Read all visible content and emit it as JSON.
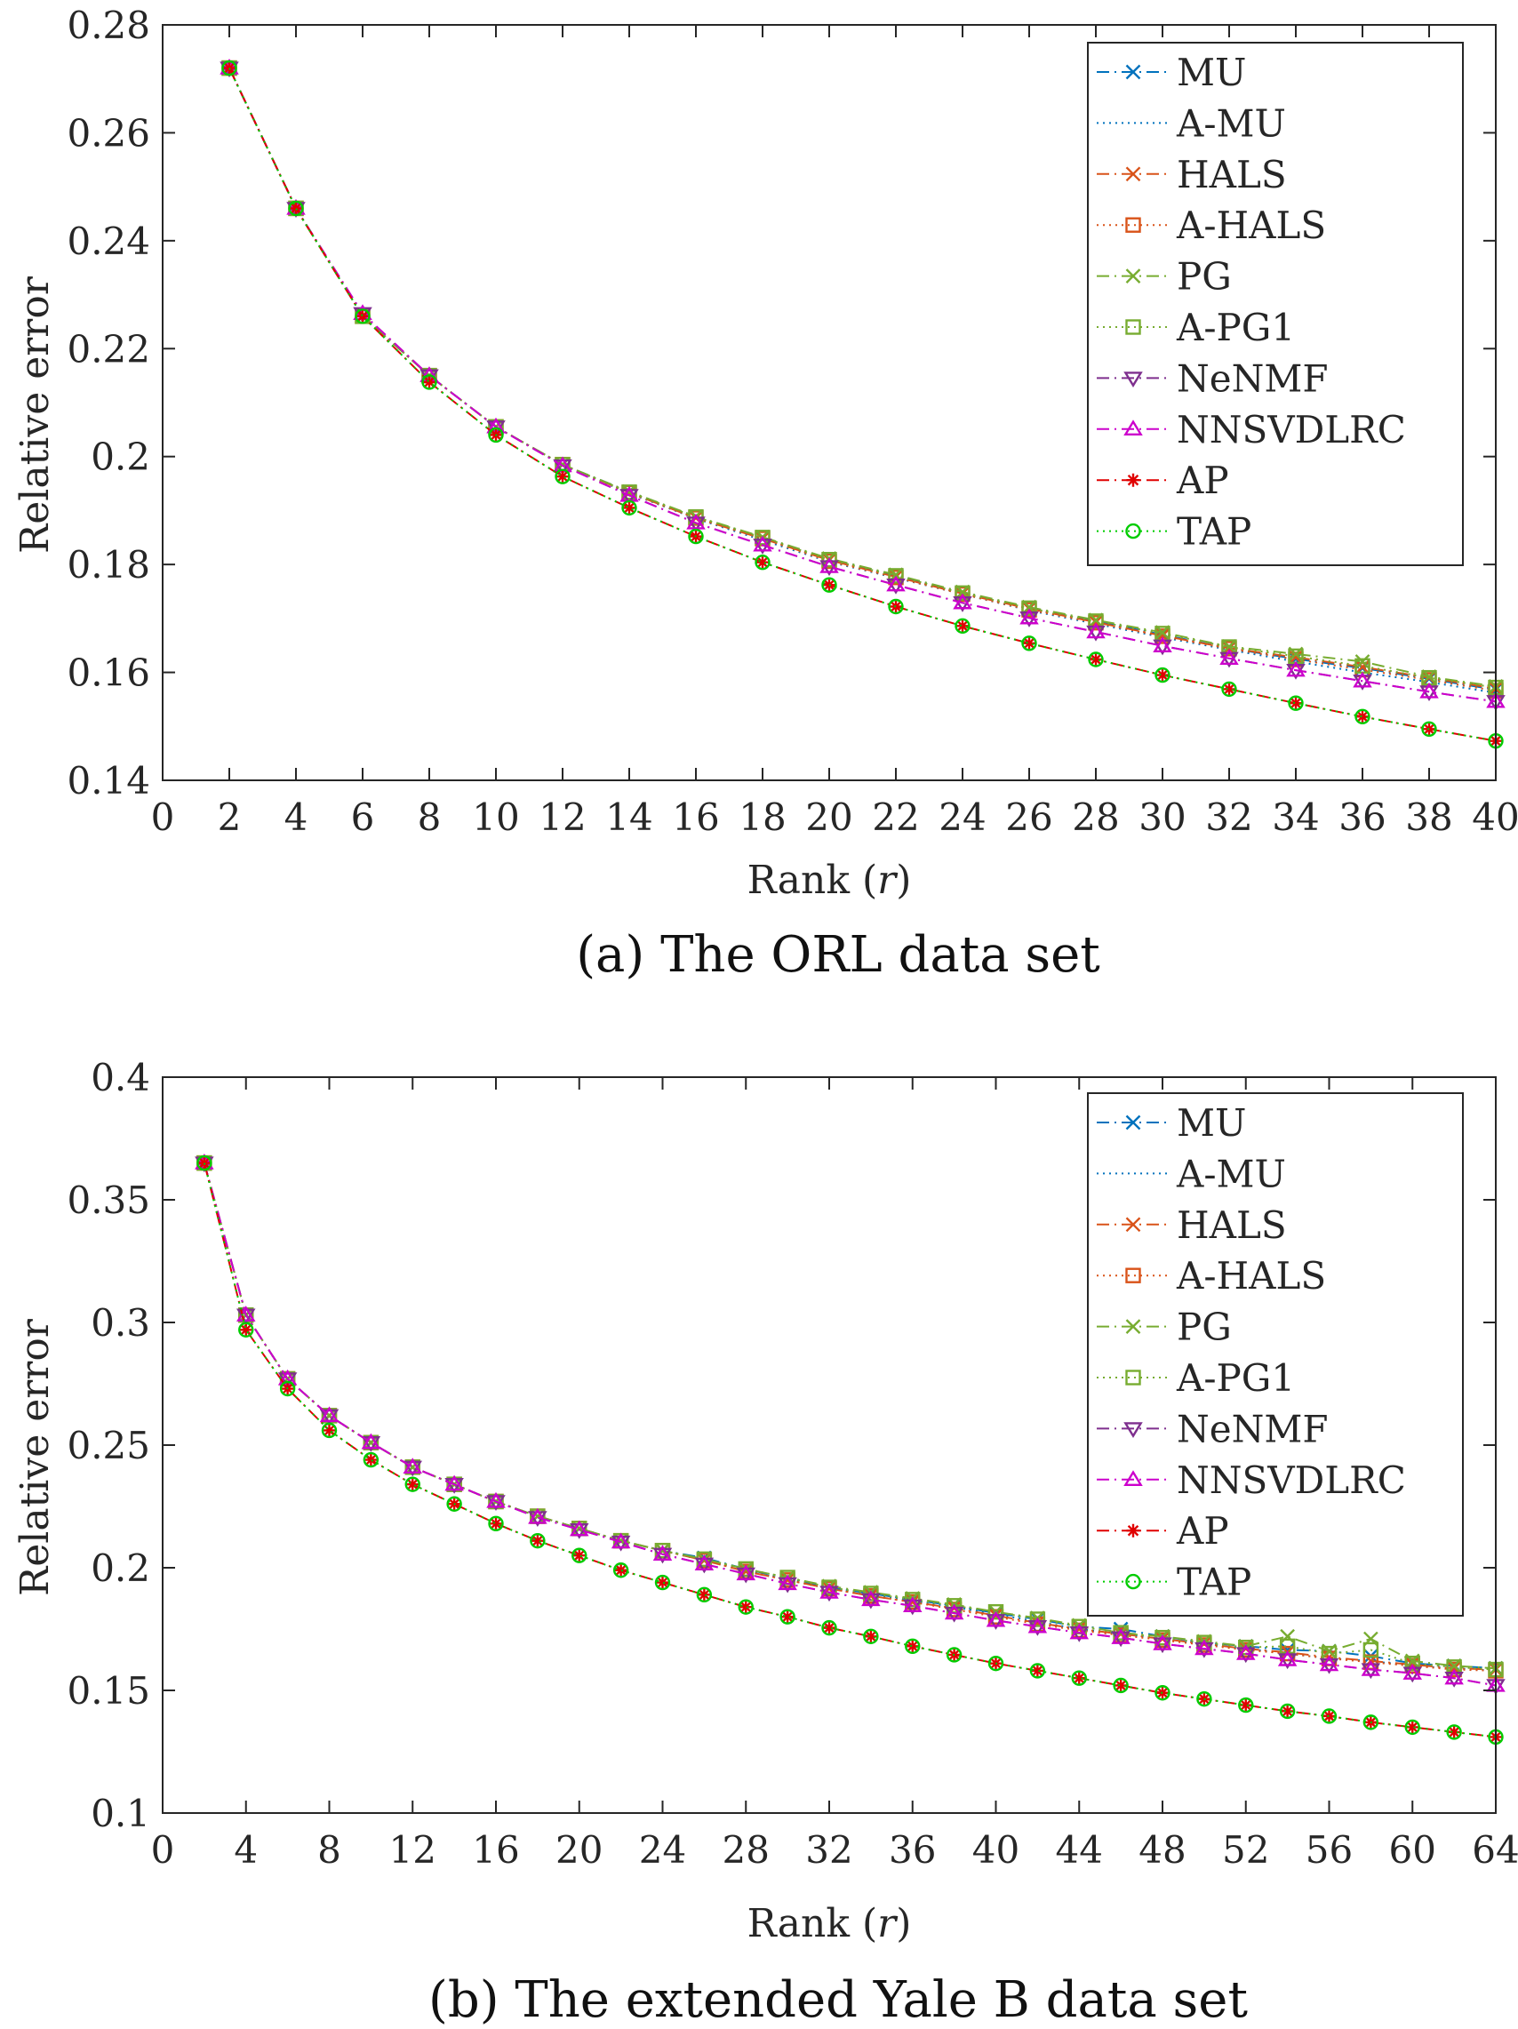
{
  "styles": {
    "MU": {
      "color": "#0072BD",
      "marker": "x",
      "dash": "long"
    },
    "A-MU": {
      "color": "#0072BD",
      "marker": "none",
      "dash": "dot"
    },
    "HALS": {
      "color": "#D95319",
      "marker": "x",
      "dash": "long"
    },
    "A-HALS": {
      "color": "#D95319",
      "marker": "square",
      "dash": "dot"
    },
    "PG": {
      "color": "#77AC30",
      "marker": "x",
      "dash": "long"
    },
    "A-PG1": {
      "color": "#77AC30",
      "marker": "square",
      "dash": "dot"
    },
    "NeNMF": {
      "color": "#7E2F8E",
      "marker": "triangle-down",
      "dash": "long"
    },
    "NNSVDLRC": {
      "color": "#CC00CC",
      "marker": "triangle-up",
      "dash": "long"
    },
    "AP": {
      "color": "#E00000",
      "marker": "asterisk",
      "dash": "long"
    },
    "TAP": {
      "color": "#00CC00",
      "marker": "circle",
      "dash": "dot"
    }
  },
  "chart_data": [
    {
      "type": "line",
      "caption": "(a) The ORL data set",
      "xlabel_main": "Rank (",
      "xlabel_var": "r",
      "xlabel_end": ")",
      "ylabel": "Relative error",
      "xlim": [
        0,
        40
      ],
      "ylim": [
        0.14,
        0.28
      ],
      "xticks": [
        0,
        2,
        4,
        6,
        8,
        10,
        12,
        14,
        16,
        18,
        20,
        22,
        24,
        26,
        28,
        30,
        32,
        34,
        36,
        38,
        40
      ],
      "yticks": [
        0.14,
        0.16,
        0.18,
        0.2,
        0.22,
        0.24,
        0.26,
        0.28
      ],
      "ytick_labels": [
        "0.14",
        "0.16",
        "0.18",
        "0.2",
        "0.22",
        "0.24",
        "0.26",
        "0.28"
      ],
      "legend_position": "top-right",
      "x": [
        2,
        4,
        6,
        8,
        10,
        12,
        14,
        16,
        18,
        20,
        22,
        24,
        26,
        28,
        30,
        32,
        34,
        36,
        38,
        40
      ],
      "series": [
        {
          "name": "MU",
          "values": [
            0.272,
            0.246,
            0.226,
            0.215,
            0.2055,
            0.1985,
            0.1935,
            0.1888,
            0.185,
            0.181,
            0.178,
            0.1748,
            0.172,
            0.1695,
            0.167,
            0.1645,
            0.1625,
            0.1608,
            0.1588,
            0.1568
          ]
        },
        {
          "name": "A-MU",
          "values": [
            0.272,
            0.246,
            0.226,
            0.215,
            0.2055,
            0.1985,
            0.1932,
            0.1885,
            0.1845,
            0.1805,
            0.1775,
            0.1745,
            0.1715,
            0.169,
            0.1665,
            0.1642,
            0.162,
            0.16,
            0.1582,
            0.1562
          ]
        },
        {
          "name": "HALS",
          "values": [
            0.272,
            0.246,
            0.226,
            0.215,
            0.2055,
            0.1985,
            0.1933,
            0.1886,
            0.1848,
            0.1808,
            0.1777,
            0.1746,
            0.1718,
            0.1693,
            0.1668,
            0.1645,
            0.1628,
            0.161,
            0.159,
            0.157
          ]
        },
        {
          "name": "A-HALS",
          "values": [
            0.272,
            0.246,
            0.226,
            0.215,
            0.2055,
            0.1985,
            0.1933,
            0.1886,
            0.1848,
            0.1806,
            0.1776,
            0.1745,
            0.1716,
            0.1692,
            0.1667,
            0.1644,
            0.1624,
            0.1605,
            0.1586,
            0.1566
          ]
        },
        {
          "name": "PG",
          "values": [
            0.272,
            0.246,
            0.226,
            0.215,
            0.2055,
            0.1985,
            0.1935,
            0.1889,
            0.1851,
            0.1811,
            0.1781,
            0.1749,
            0.1721,
            0.1697,
            0.1674,
            0.1648,
            0.1634,
            0.162,
            0.1592,
            0.1574
          ]
        },
        {
          "name": "A-PG1",
          "values": [
            0.272,
            0.246,
            0.226,
            0.215,
            0.2055,
            0.1985,
            0.1934,
            0.1888,
            0.185,
            0.1809,
            0.1779,
            0.1747,
            0.1719,
            0.1695,
            0.1672,
            0.1647,
            0.163,
            0.1612,
            0.159,
            0.1572
          ]
        },
        {
          "name": "NeNMF",
          "values": [
            0.272,
            0.246,
            0.2265,
            0.215,
            0.2055,
            0.1983,
            0.1928,
            0.1877,
            0.1836,
            0.1796,
            0.1762,
            0.1729,
            0.1701,
            0.1675,
            0.1649,
            0.1626,
            0.1604,
            0.1584,
            0.1564,
            0.1546
          ]
        },
        {
          "name": "NNSVDLRC",
          "values": [
            0.272,
            0.246,
            0.2265,
            0.215,
            0.2055,
            0.1983,
            0.1928,
            0.1877,
            0.1836,
            0.1796,
            0.1762,
            0.1729,
            0.1701,
            0.1675,
            0.1649,
            0.1626,
            0.1604,
            0.1584,
            0.1564,
            0.1546
          ]
        },
        {
          "name": "AP",
          "values": [
            0.272,
            0.246,
            0.226,
            0.2138,
            0.204,
            0.1963,
            0.1905,
            0.1852,
            0.1804,
            0.1762,
            0.1722,
            0.1686,
            0.1654,
            0.1624,
            0.1595,
            0.1569,
            0.1543,
            0.1518,
            0.1495,
            0.1473
          ]
        },
        {
          "name": "TAP",
          "values": [
            0.272,
            0.246,
            0.226,
            0.2138,
            0.204,
            0.1963,
            0.1905,
            0.1852,
            0.1804,
            0.1762,
            0.1722,
            0.1686,
            0.1654,
            0.1624,
            0.1595,
            0.1569,
            0.1543,
            0.1518,
            0.1495,
            0.1473
          ]
        }
      ]
    },
    {
      "type": "line",
      "caption": "(b) The extended Yale B data set",
      "xlabel_main": "Rank (",
      "xlabel_var": "r",
      "xlabel_end": ")",
      "ylabel": "Relative error",
      "xlim": [
        0,
        64
      ],
      "ylim": [
        0.1,
        0.4
      ],
      "xticks": [
        0,
        4,
        8,
        12,
        16,
        20,
        24,
        28,
        32,
        36,
        40,
        44,
        48,
        52,
        56,
        60,
        64
      ],
      "yticks": [
        0.1,
        0.15,
        0.2,
        0.25,
        0.3,
        0.35,
        0.4
      ],
      "ytick_labels": [
        "0.1",
        "0.15",
        "0.2",
        "0.25",
        "0.3",
        "0.35",
        "0.4"
      ],
      "legend_position": "top-right",
      "x": [
        2,
        4,
        6,
        8,
        10,
        12,
        14,
        16,
        18,
        20,
        22,
        24,
        26,
        28,
        30,
        32,
        34,
        36,
        38,
        40,
        42,
        44,
        46,
        48,
        50,
        52,
        54,
        56,
        58,
        60,
        62,
        64
      ],
      "series": [
        {
          "name": "MU",
          "values": [
            0.365,
            0.303,
            0.277,
            0.262,
            0.251,
            0.241,
            0.234,
            0.227,
            0.221,
            0.216,
            0.211,
            0.207,
            0.204,
            0.1995,
            0.1955,
            0.192,
            0.1895,
            0.187,
            0.1845,
            0.1815,
            0.179,
            0.176,
            0.175,
            0.172,
            0.1695,
            0.168,
            0.1665,
            0.166,
            0.164,
            0.161,
            0.16,
            0.159
          ]
        },
        {
          "name": "A-MU",
          "values": [
            0.365,
            0.303,
            0.277,
            0.262,
            0.251,
            0.241,
            0.234,
            0.227,
            0.221,
            0.216,
            0.211,
            0.207,
            0.203,
            0.199,
            0.195,
            0.1915,
            0.189,
            0.1865,
            0.184,
            0.181,
            0.178,
            0.175,
            0.173,
            0.171,
            0.169,
            0.167,
            0.165,
            0.163,
            0.162,
            0.16,
            0.159,
            0.158
          ]
        },
        {
          "name": "HALS",
          "values": [
            0.365,
            0.303,
            0.277,
            0.262,
            0.251,
            0.241,
            0.234,
            0.227,
            0.221,
            0.216,
            0.211,
            0.207,
            0.203,
            0.1985,
            0.195,
            0.1915,
            0.1885,
            0.186,
            0.1835,
            0.1805,
            0.1775,
            0.175,
            0.173,
            0.171,
            0.169,
            0.167,
            0.1655,
            0.1635,
            0.162,
            0.1605,
            0.159,
            0.1585
          ]
        },
        {
          "name": "A-HALS",
          "values": [
            0.365,
            0.303,
            0.277,
            0.262,
            0.251,
            0.241,
            0.234,
            0.227,
            0.221,
            0.216,
            0.211,
            0.207,
            0.203,
            0.1985,
            0.195,
            0.1915,
            0.1885,
            0.186,
            0.183,
            0.18,
            0.177,
            0.1745,
            0.1725,
            0.1705,
            0.1685,
            0.1665,
            0.165,
            0.163,
            0.1615,
            0.16,
            0.1585,
            0.158
          ]
        },
        {
          "name": "PG",
          "values": [
            0.365,
            0.303,
            0.277,
            0.262,
            0.251,
            0.241,
            0.234,
            0.227,
            0.221,
            0.216,
            0.211,
            0.207,
            0.2035,
            0.1995,
            0.196,
            0.1925,
            0.19,
            0.1875,
            0.185,
            0.182,
            0.1795,
            0.1765,
            0.1735,
            0.172,
            0.17,
            0.168,
            0.172,
            0.166,
            0.171,
            0.162,
            0.16,
            0.159
          ]
        },
        {
          "name": "A-PG1",
          "values": [
            0.365,
            0.303,
            0.277,
            0.262,
            0.251,
            0.241,
            0.234,
            0.227,
            0.221,
            0.216,
            0.211,
            0.207,
            0.2035,
            0.1995,
            0.196,
            0.192,
            0.1895,
            0.187,
            0.1845,
            0.182,
            0.179,
            0.176,
            0.1735,
            0.1715,
            0.1695,
            0.1675,
            0.168,
            0.165,
            0.1665,
            0.161,
            0.1595,
            0.1585
          ]
        },
        {
          "name": "NeNMF",
          "values": [
            0.365,
            0.303,
            0.277,
            0.262,
            0.251,
            0.241,
            0.234,
            0.227,
            0.2205,
            0.2155,
            0.2105,
            0.2055,
            0.2015,
            0.1975,
            0.1935,
            0.19,
            0.187,
            0.1845,
            0.1815,
            0.1785,
            0.176,
            0.1735,
            0.1715,
            0.169,
            0.167,
            0.165,
            0.1625,
            0.1605,
            0.1585,
            0.157,
            0.155,
            0.152
          ]
        },
        {
          "name": "NNSVDLRC",
          "values": [
            0.365,
            0.303,
            0.277,
            0.262,
            0.251,
            0.241,
            0.234,
            0.227,
            0.2205,
            0.2155,
            0.2105,
            0.2055,
            0.2015,
            0.1975,
            0.1935,
            0.19,
            0.187,
            0.1845,
            0.1815,
            0.1785,
            0.176,
            0.1735,
            0.1715,
            0.169,
            0.167,
            0.165,
            0.1625,
            0.1605,
            0.1585,
            0.157,
            0.155,
            0.152
          ]
        },
        {
          "name": "AP",
          "values": [
            0.365,
            0.297,
            0.273,
            0.256,
            0.244,
            0.234,
            0.226,
            0.218,
            0.211,
            0.205,
            0.199,
            0.194,
            0.189,
            0.184,
            0.18,
            0.1755,
            0.172,
            0.168,
            0.1645,
            0.161,
            0.158,
            0.155,
            0.152,
            0.149,
            0.1465,
            0.144,
            0.1415,
            0.1395,
            0.137,
            0.135,
            0.133,
            0.131
          ]
        },
        {
          "name": "TAP",
          "values": [
            0.365,
            0.297,
            0.273,
            0.256,
            0.244,
            0.234,
            0.226,
            0.218,
            0.211,
            0.205,
            0.199,
            0.194,
            0.189,
            0.184,
            0.18,
            0.1755,
            0.172,
            0.168,
            0.1645,
            0.161,
            0.158,
            0.155,
            0.152,
            0.149,
            0.1465,
            0.144,
            0.1415,
            0.1395,
            0.137,
            0.135,
            0.133,
            0.131
          ]
        }
      ]
    }
  ]
}
